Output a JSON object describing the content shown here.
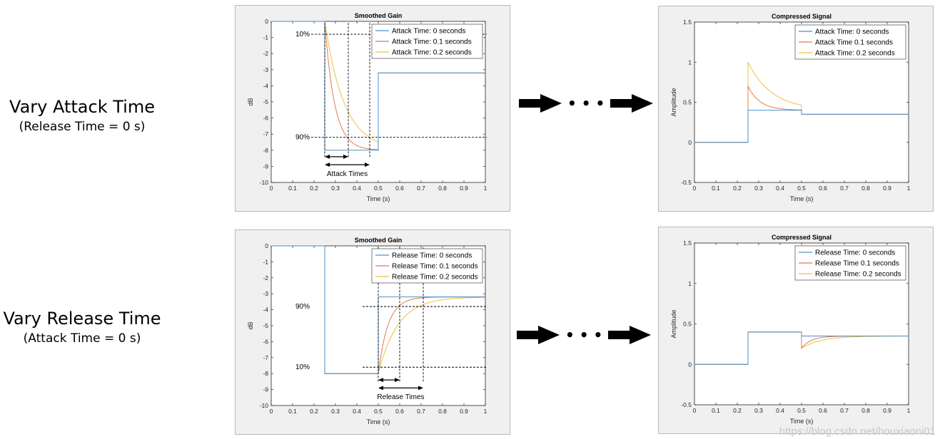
{
  "rows": [
    {
      "label": "Vary Attack Time",
      "sublabel": "(Release  Time = 0 s)"
    },
    {
      "label": "Vary Release Time",
      "sublabel": "(Attack Time = 0 s)"
    }
  ],
  "colors": {
    "series": [
      "#4a90c8",
      "#e07b50",
      "#f0c040"
    ],
    "panel_bg": "#f0f0f0",
    "arrow": "#000000"
  },
  "flow_dots": "• • •",
  "watermark": "https://blog.csdn.net/houxiaoni01",
  "chart_data": [
    {
      "type": "line",
      "title": "Smoothed Gain",
      "xlabel": "Time (s)",
      "ylabel": "dB",
      "xlim": [
        0,
        1
      ],
      "ylim": [
        -10,
        0
      ],
      "xticks": [
        "0",
        "0.1",
        "0.2",
        "0.3",
        "0.4",
        "0.5",
        "0.6",
        "0.7",
        "0.8",
        "0.9",
        "1"
      ],
      "yticks": [
        "0",
        "-1",
        "-2",
        "-3",
        "-4",
        "-5",
        "-6",
        "-7",
        "-8",
        "-9",
        "-10"
      ],
      "legend": "top-right",
      "series": [
        {
          "name": "Attack Time: 0 seconds",
          "mode": "attack",
          "tau": 0
        },
        {
          "name": "Attack Time: 0.1 seconds",
          "mode": "attack",
          "tau": 0.1
        },
        {
          "name": "Attack Time: 0.2 seconds",
          "mode": "attack",
          "tau": 0.2
        }
      ],
      "levels": {
        "start": 0,
        "low": -8,
        "end": -3.2,
        "t_on": 0.25,
        "t_off": 0.5
      },
      "annotations": {
        "pct_top": "10%",
        "pct_top_y": -0.8,
        "pct_bottom": "90%",
        "pct_bottom_y": -7.2,
        "vlines": [
          0.25,
          0.36,
          0.46
        ],
        "arrows": [
          [
            0.25,
            0.36
          ],
          [
            0.25,
            0.46
          ]
        ],
        "label": "Attack Times"
      }
    },
    {
      "type": "line",
      "title": "Compressed Signal",
      "xlabel": "Time (s)",
      "ylabel": "Amplitude",
      "xlim": [
        0,
        1
      ],
      "ylim": [
        -0.5,
        1.5
      ],
      "xticks": [
        "0",
        "0.1",
        "0.2",
        "0.3",
        "0.4",
        "0.5",
        "0.6",
        "0.7",
        "0.8",
        "0.9",
        "1"
      ],
      "yticks": [
        "1.5",
        "1",
        "0.5",
        "0",
        "-0.5"
      ],
      "legend": "top-right",
      "series": [
        {
          "name": "Attack Time: 0 seconds",
          "mode": "sig_attack",
          "tau": 0
        },
        {
          "name": "Attack Time 0.1 seconds",
          "mode": "sig_attack",
          "tau": 0.1
        },
        {
          "name": "Attack Time: 0.2 seconds",
          "mode": "sig_attack",
          "tau": 0.2
        }
      ],
      "levels": {
        "start": 0,
        "low": 0.4,
        "end": 0.35,
        "t_on": 0.25,
        "t_off": 0.5,
        "peak": 1.0
      }
    },
    {
      "type": "line",
      "title": "Smoothed Gain",
      "xlabel": "Time (s)",
      "ylabel": "dB",
      "xlim": [
        0,
        1
      ],
      "ylim": [
        -10,
        0
      ],
      "xticks": [
        "0",
        "0.1",
        "0.2",
        "0.3",
        "0.4",
        "0.5",
        "0.6",
        "0.7",
        "0.8",
        "0.9",
        "1"
      ],
      "yticks": [
        "0",
        "-1",
        "-2",
        "-3",
        "-4",
        "-5",
        "-6",
        "-7",
        "-8",
        "-9",
        "-10"
      ],
      "legend": "top-right",
      "series": [
        {
          "name": "Release Time: 0 seconds",
          "mode": "release",
          "tau": 0
        },
        {
          "name": "Release Time: 0.1 seconds",
          "mode": "release",
          "tau": 0.1
        },
        {
          "name": "Release Time: 0.2 seconds",
          "mode": "release",
          "tau": 0.2
        }
      ],
      "levels": {
        "start": 0,
        "low": -8,
        "end": -3.2,
        "t_on": 0.25,
        "t_off": 0.5
      },
      "annotations": {
        "pct_top": "90%",
        "pct_top_y": -3.8,
        "pct_bottom": "10%",
        "pct_bottom_y": -7.6,
        "vlines": [
          0.5,
          0.6,
          0.71
        ],
        "arrows": [
          [
            0.5,
            0.6
          ],
          [
            0.5,
            0.71
          ]
        ],
        "label": "Release Times"
      }
    },
    {
      "type": "line",
      "title": "Compressed Signal",
      "xlabel": "Time (s)",
      "ylabel": "Amplitude",
      "xlim": [
        0,
        1
      ],
      "ylim": [
        -0.5,
        1.5
      ],
      "xticks": [
        "0",
        "0.1",
        "0.2",
        "0.3",
        "0.4",
        "0.5",
        "0.6",
        "0.7",
        "0.8",
        "0.9",
        "1"
      ],
      "yticks": [
        "1.5",
        "1",
        "0.5",
        "0",
        "-0.5"
      ],
      "legend": "top-right",
      "series": [
        {
          "name": "Release Time: 0 seconds",
          "mode": "sig_release",
          "tau": 0
        },
        {
          "name": "Release Time 0.1 seconds",
          "mode": "sig_release",
          "tau": 0.1
        },
        {
          "name": "Release Time: 0.2 seconds",
          "mode": "sig_release",
          "tau": 0.2
        }
      ],
      "levels": {
        "start": 0,
        "low": 0.4,
        "end": 0.35,
        "t_on": 0.25,
        "t_off": 0.5,
        "dip": 0.2
      }
    }
  ]
}
